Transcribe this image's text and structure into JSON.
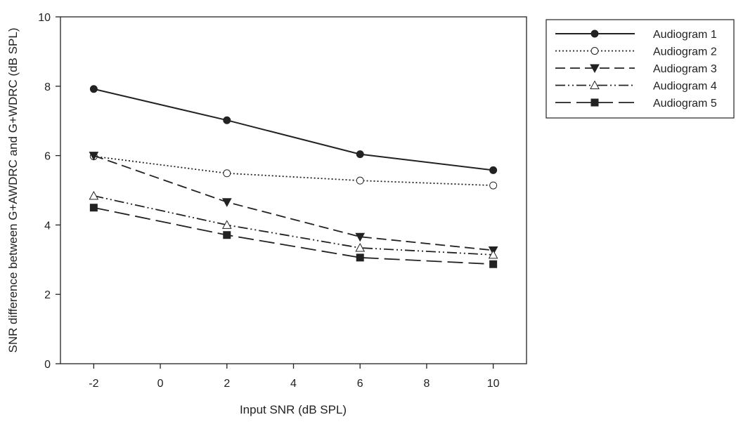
{
  "chart_data": {
    "type": "line",
    "xlabel": "Input SNR (dB SPL)",
    "ylabel": "SNR difference between G+AWDRC and G+WDRC (dB SPL)",
    "xlim": [
      -3,
      11
    ],
    "ylim": [
      0,
      10
    ],
    "x_ticks": [
      -2,
      0,
      2,
      4,
      6,
      8,
      10
    ],
    "y_ticks": [
      0,
      2,
      4,
      6,
      8,
      10
    ],
    "x_tick_labels": [
      "-2",
      "0",
      "2",
      "4",
      "6",
      "8",
      "10"
    ],
    "y_tick_labels": [
      "0",
      "2",
      "4",
      "6",
      "8",
      "10"
    ],
    "grid": false,
    "legend_position": "outside-top-right",
    "x": [
      -2,
      2,
      6,
      10
    ],
    "series": [
      {
        "name": "Audiogram 1",
        "values": [
          7.92,
          7.02,
          6.04,
          5.58
        ],
        "marker": "filled-circle",
        "line": "solid",
        "color": "#222222"
      },
      {
        "name": "Audiogram 2",
        "values": [
          5.98,
          5.49,
          5.28,
          5.14
        ],
        "marker": "open-circle",
        "line": "dotted",
        "color": "#222222"
      },
      {
        "name": "Audiogram 3",
        "values": [
          6.0,
          4.66,
          3.66,
          3.27
        ],
        "marker": "filled-triangle-down",
        "line": "dashed",
        "color": "#222222"
      },
      {
        "name": "Audiogram 4",
        "values": [
          4.84,
          4.0,
          3.34,
          3.14
        ],
        "marker": "open-triangle-up",
        "line": "dash-dot-dot",
        "color": "#222222"
      },
      {
        "name": "Audiogram 5",
        "values": [
          4.5,
          3.71,
          3.06,
          2.87
        ],
        "marker": "filled-square",
        "line": "long-dash",
        "color": "#222222"
      }
    ]
  }
}
